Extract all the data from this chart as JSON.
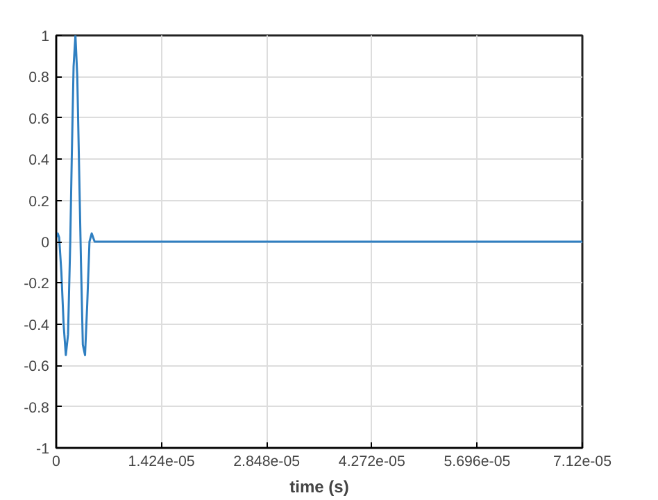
{
  "chart_data": {
    "type": "line",
    "xlabel": "time (s)",
    "x": [
      0,
      2e-07,
      4e-07,
      7e-07,
      1e-06,
      1.3e-06,
      1.6e-06,
      1.9e-06,
      2.1e-06,
      2.35e-06,
      2.6e-06,
      2.85e-06,
      3.1e-06,
      3.35e-06,
      3.6e-06,
      3.9e-06,
      4.2e-06,
      4.5e-06,
      4.8e-06,
      5.2e-06,
      7.12e-05
    ],
    "series": [
      {
        "color": "#2f7fc1",
        "values": [
          0.02,
          0.04,
          0.02,
          -0.15,
          -0.4,
          -0.55,
          -0.45,
          0,
          0.4,
          0.85,
          1,
          0.8,
          0.35,
          -0.1,
          -0.5,
          -0.55,
          -0.3,
          0,
          0.04,
          0,
          0
        ]
      }
    ],
    "xlim": [
      0,
      7.12e-05
    ],
    "ylim": [
      -1,
      1
    ],
    "xticks": [
      0,
      {
        "value": 1.424e-05,
        "label": "1.424e-05"
      },
      {
        "value": 2.848e-05,
        "label": "2.848e-05"
      },
      {
        "value": 4.272e-05,
        "label": "4.272e-05"
      },
      {
        "value": 5.696e-05,
        "label": "5.696e-05"
      },
      {
        "value": 7.12e-05,
        "label": "7.12e-05"
      }
    ],
    "yticks": [
      -1,
      -0.8,
      -0.6,
      -0.4,
      -0.2,
      0,
      0.2,
      0.4,
      0.6,
      0.8,
      1
    ],
    "grid": true,
    "line_style": "solid"
  }
}
